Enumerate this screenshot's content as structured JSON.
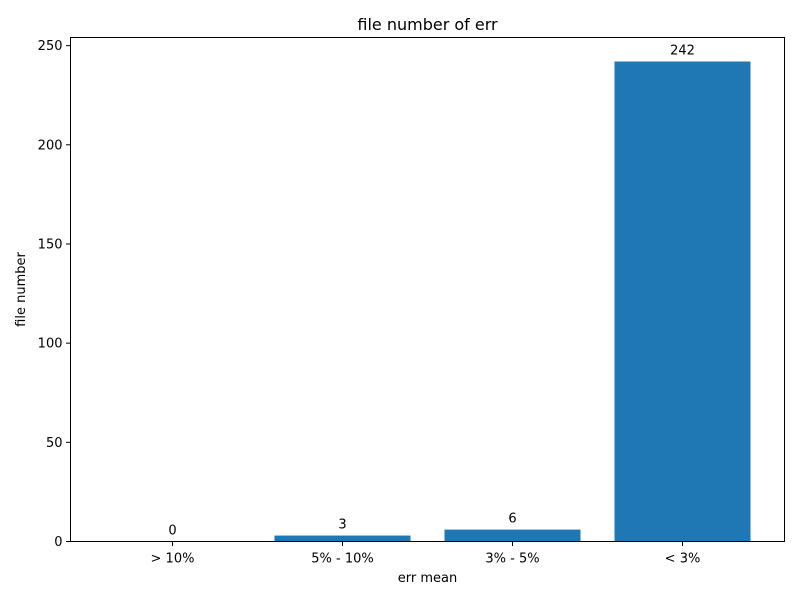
{
  "chart_data": {
    "type": "bar",
    "title": "file number of err",
    "xlabel": "err mean",
    "ylabel": "file number",
    "categories": [
      "> 10%",
      "5% - 10%",
      "3% - 5%",
      "< 3%"
    ],
    "values": [
      0,
      3,
      6,
      242
    ],
    "data_labels": [
      "0",
      "3",
      "6",
      "242"
    ],
    "yticks": [
      0,
      50,
      100,
      150,
      200,
      250
    ],
    "ytick_labels": [
      "0",
      "50",
      "100",
      "150",
      "200",
      "250"
    ],
    "ylim": [
      0,
      254.1
    ],
    "grid": false,
    "legend": "none",
    "bar_color": "#1f77b4"
  }
}
